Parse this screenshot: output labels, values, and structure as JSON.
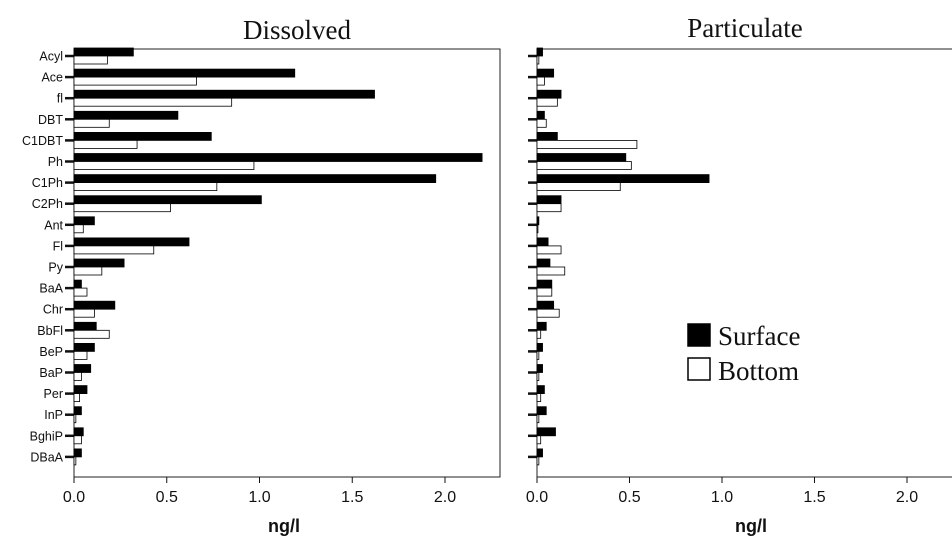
{
  "chart_data": [
    {
      "type": "bar",
      "orientation": "horizontal",
      "title": "Dissolved",
      "xlabel": "ng/l",
      "xlim": [
        0,
        2.25
      ],
      "xticks": [
        "0.0",
        "0.5",
        "1.0",
        "1.5",
        "2.0"
      ],
      "categories": [
        "Acyl",
        "Ace",
        "fl",
        "DBT",
        "C1DBT",
        "Ph",
        "C1Ph",
        "C2Ph",
        "Ant",
        "Fl",
        "Py",
        "BaA",
        "Chr",
        "BbFl",
        "BeP",
        "BaP",
        "Per",
        "InP",
        "BghiP",
        "DBaA"
      ],
      "series": [
        {
          "name": "Surface",
          "color": "#000000",
          "values": [
            0.32,
            1.19,
            1.62,
            0.56,
            0.74,
            2.2,
            1.95,
            1.01,
            0.11,
            0.62,
            0.27,
            0.04,
            0.22,
            0.12,
            0.11,
            0.09,
            0.07,
            0.04,
            0.05,
            0.04
          ]
        },
        {
          "name": "Bottom",
          "color": "#ffffff",
          "values": [
            0.18,
            0.66,
            0.85,
            0.19,
            0.34,
            0.97,
            0.77,
            0.52,
            0.05,
            0.43,
            0.15,
            0.07,
            0.11,
            0.19,
            0.07,
            0.04,
            0.03,
            0.01,
            0.04,
            0.01
          ]
        }
      ]
    },
    {
      "type": "bar",
      "orientation": "horizontal",
      "title": "Particulate",
      "xlabel": "ng/l",
      "xlim": [
        0,
        2.25
      ],
      "xticks": [
        "0.0",
        "0.5",
        "1.0",
        "1.5",
        "2.0"
      ],
      "categories": [
        "Acyl",
        "Ace",
        "fl",
        "DBT",
        "C1DBT",
        "Ph",
        "C1Ph",
        "C2Ph",
        "Ant",
        "Fl",
        "Py",
        "BaA",
        "Chr",
        "BbFl",
        "BeP",
        "BaP",
        "Per",
        "InP",
        "BghiP",
        "DBaA"
      ],
      "series": [
        {
          "name": "Surface",
          "color": "#000000",
          "values": [
            0.03,
            0.09,
            0.13,
            0.04,
            0.11,
            0.48,
            0.93,
            0.13,
            0.01,
            0.06,
            0.07,
            0.08,
            0.09,
            0.05,
            0.03,
            0.03,
            0.04,
            0.05,
            0.1,
            0.03
          ]
        },
        {
          "name": "Bottom",
          "color": "#ffffff",
          "values": [
            0.01,
            0.04,
            0.11,
            0.05,
            0.54,
            0.51,
            0.45,
            0.13,
            0.005,
            0.13,
            0.15,
            0.08,
            0.12,
            0.02,
            0.01,
            0.01,
            0.02,
            0.01,
            0.02,
            0.01
          ]
        }
      ]
    }
  ],
  "legend": {
    "position": "right, inside Particulate panel",
    "items": [
      {
        "label": "Surface",
        "color": "#000000"
      },
      {
        "label": "Bottom",
        "color": "#ffffff"
      }
    ]
  }
}
